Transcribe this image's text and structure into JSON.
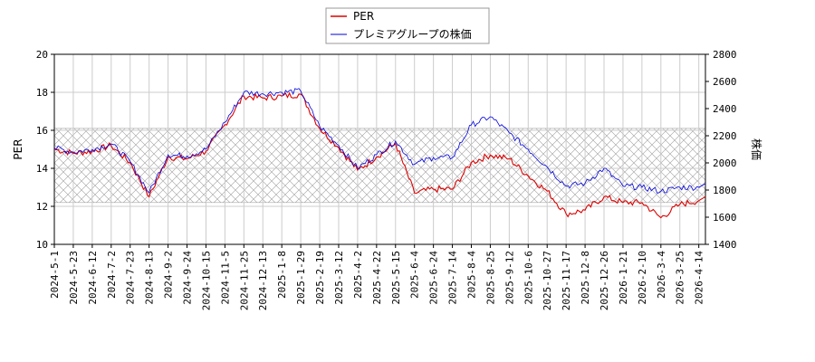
{
  "chart_data": {
    "type": "line",
    "legend": {
      "placement": "top-center"
    },
    "grid": true,
    "x_ticks": [
      "2024-5-1",
      "2024-5-23",
      "2024-6-12",
      "2024-7-2",
      "2024-7-23",
      "2024-8-13",
      "2024-9-2",
      "2024-9-24",
      "2024-10-15",
      "2024-11-5",
      "2024-11-25",
      "2024-12-13",
      "2025-1-8",
      "2025-1-29",
      "2025-2-19",
      "2025-3-12",
      "2025-4-2",
      "2025-4-22",
      "2025-5-15",
      "2025-6-4",
      "2025-6-24",
      "2025-7-14",
      "2025-8-4",
      "2025-8-25",
      "2025-9-12",
      "2025-10-6",
      "2025-10-27",
      "2025-11-17",
      "2025-12-8",
      "2025-12-26",
      "2026-1-21",
      "2026-2-10",
      "2026-3-4",
      "2026-3-25",
      "2026-4-14"
    ],
    "y_left": {
      "label": "PER",
      "min": 10,
      "max": 20,
      "ticks": [
        10,
        12,
        14,
        16,
        18,
        20
      ]
    },
    "y_right": {
      "label": "株価",
      "min": 1400,
      "max": 2800,
      "ticks": [
        1400,
        1600,
        1800,
        2000,
        2200,
        2400,
        2600,
        2800
      ]
    },
    "band": {
      "axis": "left",
      "from": 12.2,
      "to": 16.1,
      "pattern": "crosshatch"
    },
    "series": [
      {
        "name": "PER",
        "color": "#dd0000",
        "axis": "left",
        "x": [
          "2024-5-1",
          "2024-5-23",
          "2024-6-12",
          "2024-7-2",
          "2024-7-23",
          "2024-8-13",
          "2024-9-2",
          "2024-9-24",
          "2024-10-15",
          "2024-11-5",
          "2024-11-25",
          "2024-12-13",
          "2025-1-8",
          "2025-1-29",
          "2025-2-19",
          "2025-3-12",
          "2025-4-2",
          "2025-4-22",
          "2025-5-15",
          "2025-6-4",
          "2025-6-24",
          "2025-7-14",
          "2025-8-4",
          "2025-8-25",
          "2025-9-12",
          "2025-10-6",
          "2025-10-27",
          "2025-11-17",
          "2025-12-8",
          "2025-12-26",
          "2026-1-21",
          "2026-2-10",
          "2026-3-4",
          "2026-3-25",
          "2026-4-14"
        ],
        "values": [
          15.0,
          14.8,
          14.9,
          15.2,
          14.3,
          12.5,
          14.6,
          14.5,
          14.9,
          16.3,
          17.8,
          17.7,
          17.8,
          17.9,
          16.1,
          15.1,
          13.9,
          14.6,
          15.3,
          12.7,
          12.9,
          12.9,
          14.3,
          14.7,
          14.5,
          13.6,
          12.8,
          11.6,
          11.8,
          12.5,
          12.2,
          12.2,
          11.4,
          12.1,
          12.3
        ]
      },
      {
        "name": "プレミアグループの株価",
        "color": "#0000dd",
        "axis": "right",
        "x": [
          "2024-5-1",
          "2024-5-23",
          "2024-6-12",
          "2024-7-2",
          "2024-7-23",
          "2024-8-13",
          "2024-9-2",
          "2024-9-24",
          "2024-10-15",
          "2024-11-5",
          "2024-11-25",
          "2024-12-13",
          "2025-1-8",
          "2025-1-29",
          "2025-2-19",
          "2025-3-12",
          "2025-4-2",
          "2025-4-22",
          "2025-5-15",
          "2025-6-4",
          "2025-6-24",
          "2025-7-14",
          "2025-8-4",
          "2025-8-25",
          "2025-9-12",
          "2025-10-6",
          "2025-10-27",
          "2025-11-17",
          "2025-12-8",
          "2025-12-26",
          "2026-1-21",
          "2026-2-10",
          "2026-3-4",
          "2026-3-25",
          "2026-4-14"
        ],
        "values": [
          2110,
          2080,
          2100,
          2140,
          2010,
          1780,
          2060,
          2050,
          2100,
          2300,
          2520,
          2510,
          2520,
          2530,
          2270,
          2130,
          1960,
          2060,
          2160,
          1990,
          2040,
          2040,
          2280,
          2340,
          2220,
          2100,
          1970,
          1830,
          1850,
          1960,
          1830,
          1820,
          1790,
          1820,
          1820
        ]
      }
    ]
  }
}
